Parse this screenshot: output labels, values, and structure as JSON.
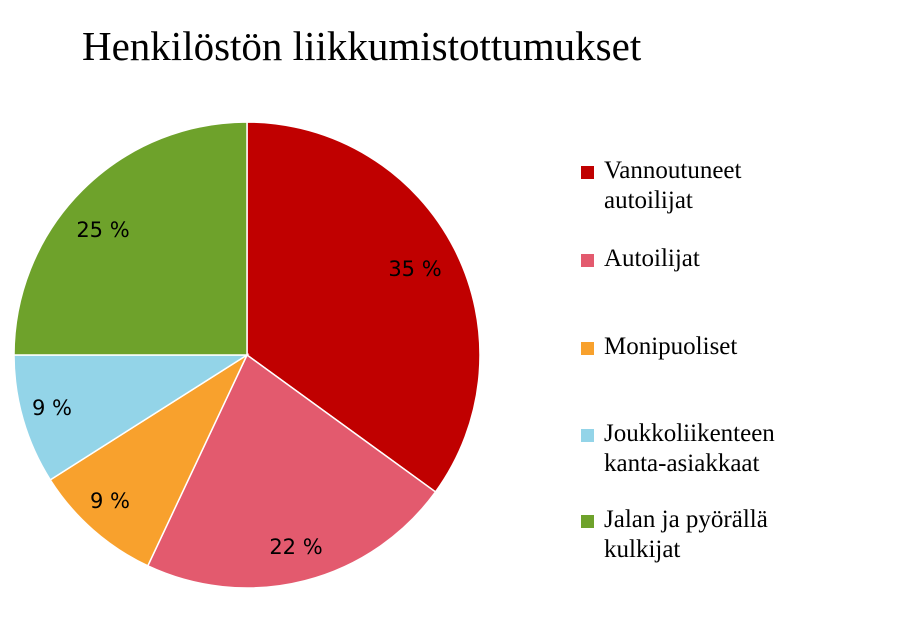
{
  "chart_data": {
    "type": "pie",
    "title": "Henkilöstön liikkumistottumukset",
    "slices": [
      {
        "name": "Vannoutuneet autoilijat",
        "value": 35,
        "label": "35 %",
        "color": "#C00000"
      },
      {
        "name": "Autoilijat",
        "value": 22,
        "label": "22 %",
        "color": "#E35A6E"
      },
      {
        "name": "Monipuoliset",
        "value": 9,
        "label": "9 %",
        "color": "#F8A12D"
      },
      {
        "name": "Joukkoliikenteen kanta-asiakkaat",
        "value": 9,
        "label": "9 %",
        "color": "#93D4E8"
      },
      {
        "name": "Jalan ja pyörällä kulkijat",
        "value": 25,
        "label": "25 %",
        "color": "#6EA22B"
      }
    ],
    "legend_position": "right"
  },
  "legend": [
    {
      "line1": "Vannoutuneet",
      "line2": "autoilijat"
    },
    {
      "line1": "Autoilijat",
      "line2": ""
    },
    {
      "line1": "Monipuoliset",
      "line2": ""
    },
    {
      "line1": "Joukkoliikenteen",
      "line2": "kanta-asiakkaat"
    },
    {
      "line1": "Jalan ja pyörällä",
      "line2": "kulkijat"
    }
  ]
}
